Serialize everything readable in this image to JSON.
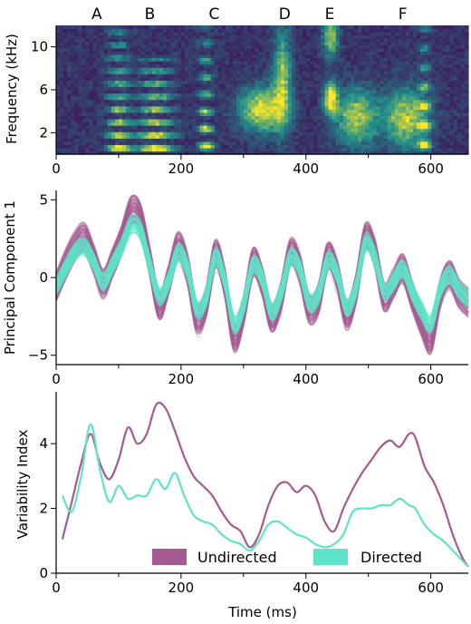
{
  "chart_data": [
    {
      "type": "heatmap",
      "ylabel": "Frequency (kHz)",
      "xlim": [
        0,
        660
      ],
      "ylim": [
        0,
        12
      ],
      "x_ticks": [
        "0",
        "200",
        "400",
        "600"
      ],
      "y_ticks": [
        "2",
        "6",
        "10"
      ],
      "syllables": [
        {
          "label": "A",
          "x": 65
        },
        {
          "label": "B",
          "x": 150
        },
        {
          "label": "C",
          "x": 253
        },
        {
          "label": "D",
          "x": 366
        },
        {
          "label": "E",
          "x": 438
        },
        {
          "label": "F",
          "x": 555
        }
      ],
      "colors": {
        "low": "#440154",
        "mid": "#21918c",
        "high": "#fde725"
      }
    },
    {
      "type": "line",
      "ylabel": "Principal Component 1",
      "xlim": [
        0,
        660
      ],
      "ylim": [
        -5.6,
        5.6
      ],
      "x_ticks": [
        "0",
        "200",
        "400",
        "600"
      ],
      "y_ticks": [
        "-5",
        "0",
        "5"
      ],
      "series": [
        {
          "name": "Undirected",
          "color": "#a55b91",
          "x": [
            0,
            15,
            30,
            45,
            60,
            75,
            90,
            105,
            120,
            135,
            150,
            165,
            180,
            195,
            210,
            225,
            240,
            255,
            270,
            285,
            300,
            315,
            330,
            345,
            360,
            375,
            390,
            405,
            420,
            435,
            450,
            465,
            480,
            495,
            510,
            525,
            540,
            555,
            570,
            585,
            600,
            615,
            630,
            645,
            660
          ],
          "values": [
            -0.6,
            0.8,
            2.0,
            2.6,
            1.2,
            -0.4,
            0.9,
            2.4,
            4.3,
            3.8,
            1.0,
            -1.8,
            -0.2,
            2.0,
            0.6,
            -2.6,
            -1.6,
            1.5,
            -0.3,
            -3.8,
            -2.2,
            1.0,
            -0.2,
            -2.6,
            -1.2,
            1.6,
            0.6,
            -2.0,
            -1.4,
            1.4,
            0.2,
            -2.4,
            -0.8,
            2.6,
            1.6,
            -1.2,
            -0.4,
            0.6,
            -1.2,
            -2.8,
            -4.0,
            -1.0,
            0.2,
            -1.0,
            -1.6
          ],
          "spread": 0.9
        },
        {
          "name": "Directed",
          "color": "#5fe3c9",
          "x": [
            0,
            15,
            30,
            45,
            60,
            75,
            90,
            105,
            120,
            135,
            150,
            165,
            180,
            195,
            210,
            225,
            240,
            255,
            270,
            285,
            300,
            315,
            330,
            345,
            360,
            375,
            390,
            405,
            420,
            435,
            450,
            465,
            480,
            495,
            510,
            525,
            540,
            555,
            570,
            585,
            600,
            615,
            630,
            645,
            660
          ],
          "values": [
            -0.6,
            0.6,
            1.6,
            2.0,
            1.0,
            -0.3,
            0.8,
            2.0,
            3.4,
            3.0,
            0.8,
            -1.2,
            -0.2,
            1.6,
            0.6,
            -2.0,
            -1.3,
            1.3,
            -0.2,
            -3.0,
            -1.8,
            0.8,
            -0.1,
            -2.2,
            -1.0,
            1.3,
            0.6,
            -1.6,
            -1.1,
            1.1,
            0.2,
            -1.9,
            -0.7,
            2.2,
            1.3,
            -0.9,
            -0.3,
            0.6,
            -0.9,
            -2.1,
            -3.0,
            -0.8,
            0.2,
            -0.8,
            -1.4
          ],
          "spread": 0.55
        }
      ]
    },
    {
      "type": "line",
      "ylabel": "Variability Index",
      "xlabel": "Time (ms)",
      "xlim": [
        0,
        660
      ],
      "ylim": [
        0,
        5.6
      ],
      "x_ticks": [
        "0",
        "200",
        "400",
        "600"
      ],
      "y_ticks": [
        "0",
        "2",
        "4"
      ],
      "legend": "bottom",
      "series": [
        {
          "name": "Undirected",
          "color": "#a55b91",
          "x": [
            10,
            25,
            40,
            55,
            70,
            85,
            100,
            115,
            130,
            145,
            160,
            175,
            190,
            205,
            220,
            235,
            250,
            265,
            280,
            295,
            310,
            325,
            340,
            355,
            370,
            385,
            400,
            415,
            430,
            445,
            460,
            475,
            490,
            505,
            520,
            535,
            550,
            565,
            575,
            590,
            605,
            620,
            635,
            650,
            660
          ],
          "values": [
            1.05,
            2.2,
            3.4,
            4.3,
            3.4,
            2.9,
            3.5,
            4.5,
            4.0,
            4.3,
            5.2,
            5.1,
            4.4,
            3.6,
            3.0,
            2.7,
            2.4,
            1.9,
            1.5,
            1.3,
            0.8,
            1.2,
            2.1,
            2.7,
            2.8,
            2.5,
            2.7,
            2.4,
            1.6,
            1.3,
            2.0,
            2.6,
            3.1,
            3.5,
            3.9,
            4.1,
            3.9,
            4.3,
            4.2,
            3.3,
            2.8,
            2.1,
            1.2,
            0.5,
            0.2
          ]
        },
        {
          "name": "Directed",
          "color": "#5fe3c9",
          "x": [
            10,
            25,
            40,
            55,
            70,
            85,
            100,
            115,
            130,
            145,
            160,
            175,
            190,
            205,
            220,
            235,
            250,
            265,
            280,
            295,
            310,
            325,
            340,
            355,
            370,
            385,
            400,
            415,
            430,
            445,
            460,
            475,
            490,
            505,
            520,
            535,
            550,
            565,
            575,
            590,
            605,
            620,
            635,
            650,
            660
          ],
          "values": [
            2.4,
            1.9,
            3.0,
            4.6,
            3.2,
            2.2,
            2.7,
            2.3,
            2.4,
            2.4,
            2.9,
            2.6,
            3.1,
            2.4,
            1.8,
            1.6,
            1.5,
            1.2,
            1.0,
            0.9,
            0.7,
            1.0,
            1.5,
            1.6,
            1.4,
            1.2,
            1.1,
            0.9,
            0.8,
            0.9,
            1.2,
            1.9,
            2.0,
            2.0,
            2.1,
            2.1,
            2.3,
            2.1,
            2.0,
            1.5,
            1.2,
            1.0,
            0.7,
            0.4,
            0.2
          ]
        }
      ]
    }
  ]
}
